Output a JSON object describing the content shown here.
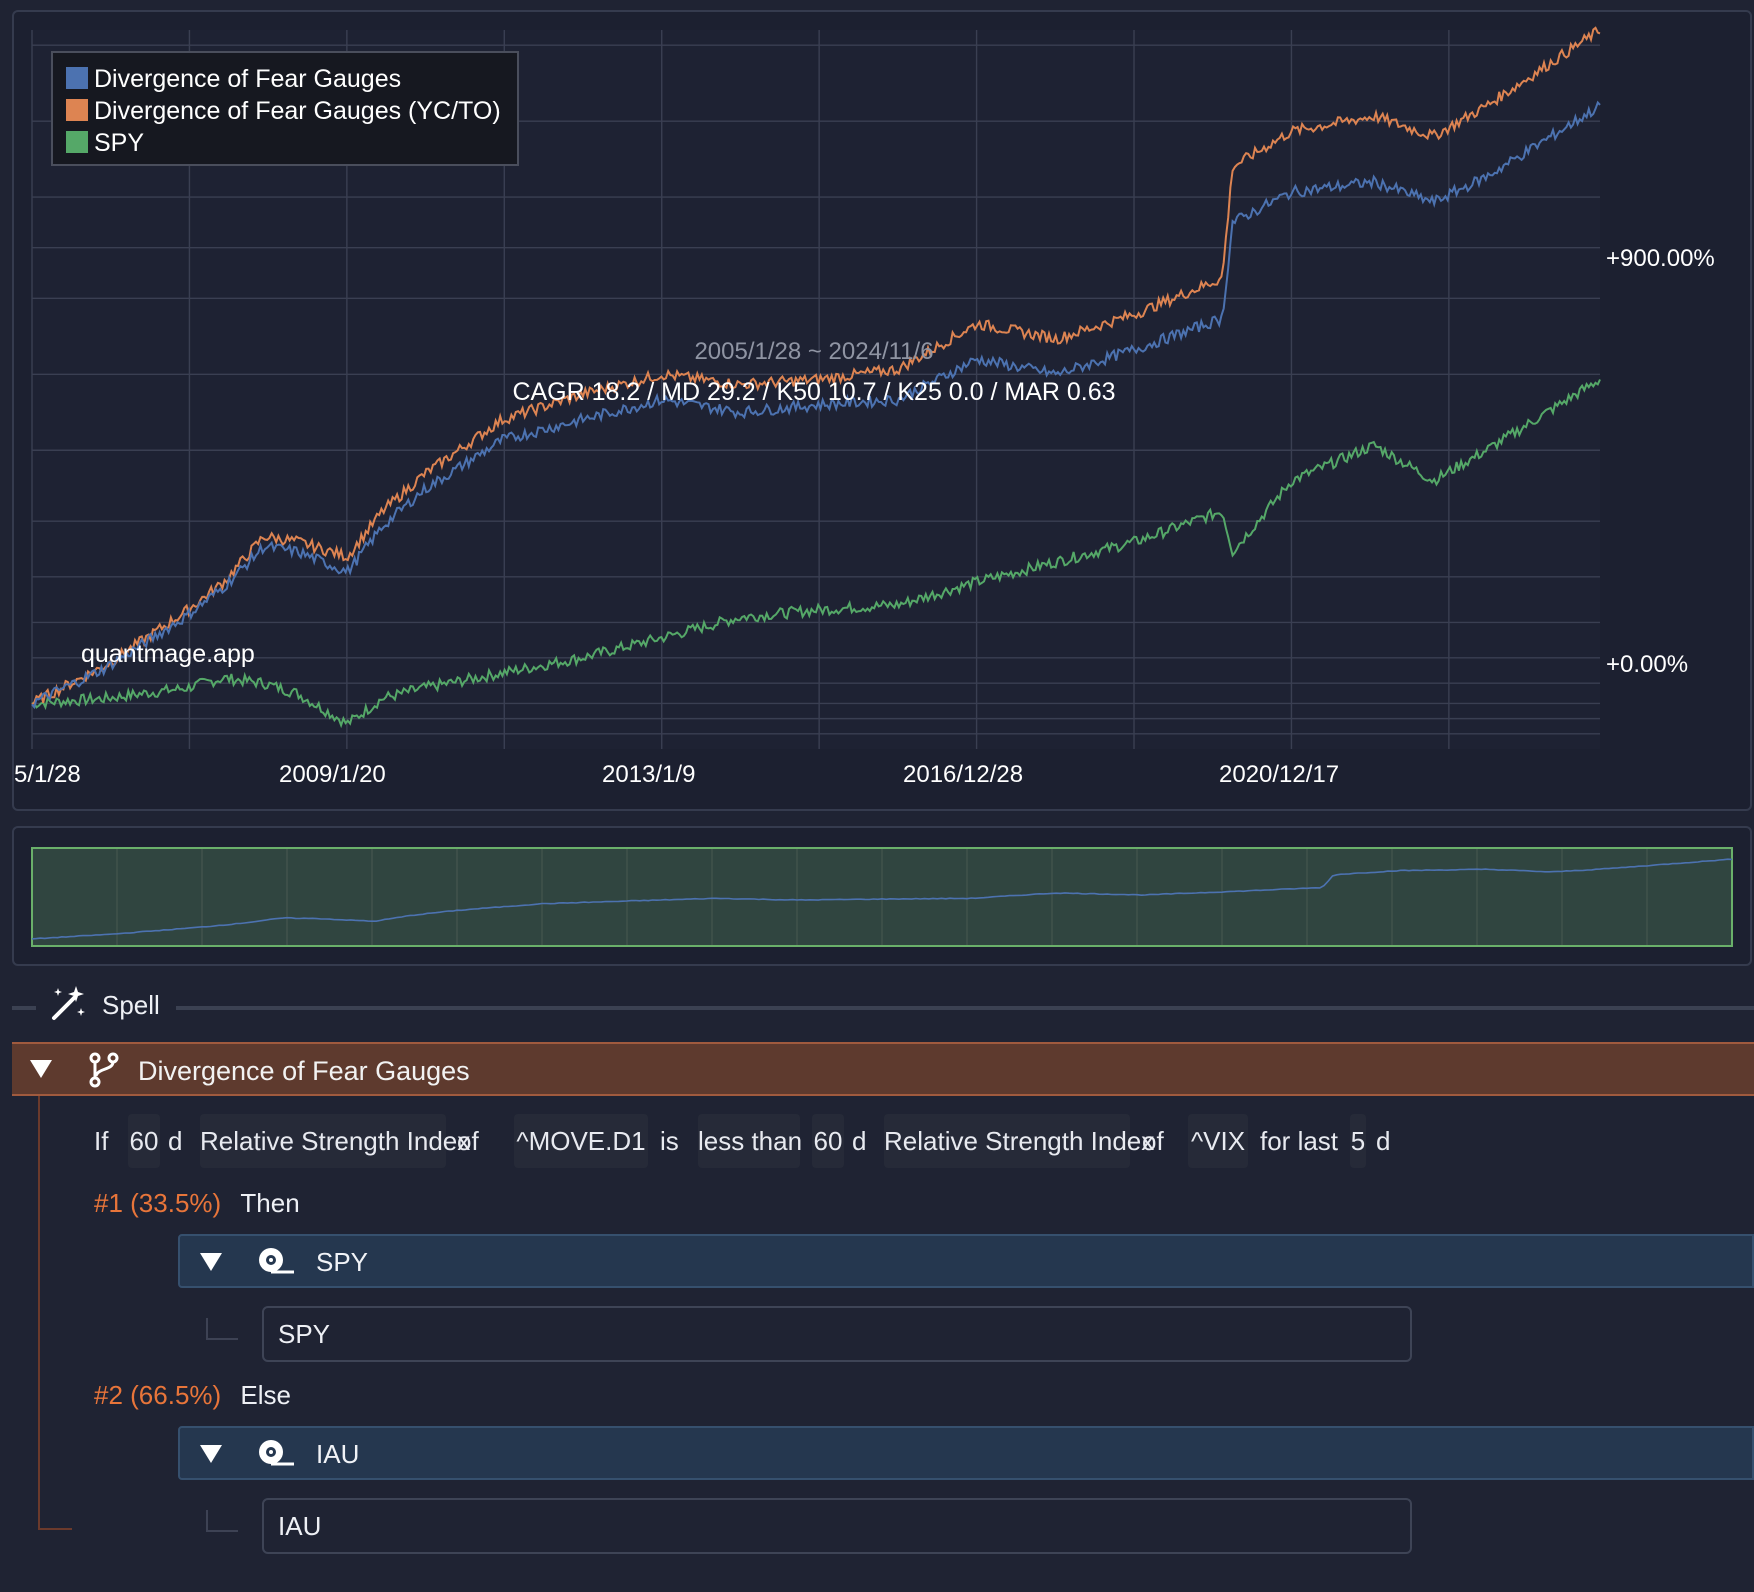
{
  "chart": {
    "legend": [
      "Divergence of Fear Gauges",
      "Divergence of Fear Gauges (YC/TO)",
      "SPY"
    ],
    "series_colors": [
      "#4c72b0",
      "#dd8452",
      "#55a868"
    ],
    "date_range": "2005/1/28 ~ 2024/11/6",
    "stats": "CAGR 18.2 / MD 29.2 / K50 10.7 / K25 0.0 / MAR 0.63",
    "watermark": "quantmage.app",
    "y_ticks": [
      "+900.00%",
      "+0.00%"
    ],
    "x_ticks": [
      "5/1/28",
      "2009/1/20",
      "2013/1/9",
      "2016/12/28",
      "2020/12/17"
    ]
  },
  "chart_data": {
    "type": "line",
    "x": [
      "2005/1/28",
      "2006/1/1",
      "2007/1/1",
      "2007/7/1",
      "2008/1/1",
      "2008/6/1",
      "2009/1/20",
      "2009/7/1",
      "2010/1/1",
      "2011/1/1",
      "2012/1/1",
      "2013/1/9",
      "2014/1/1",
      "2015/1/1",
      "2016/1/1",
      "2016/12/28",
      "2018/1/1",
      "2019/1/1",
      "2020/2/1",
      "2020/3/20",
      "2020/12/17",
      "2022/1/1",
      "2022/10/1",
      "2023/6/1",
      "2024/11/6"
    ],
    "series": [
      {
        "name": "Divergence of Fear Gauges",
        "values": [
          0,
          70,
          170,
          230,
          310,
          300,
          260,
          350,
          420,
          520,
          560,
          600,
          575,
          590,
          600,
          680,
          650,
          700,
          760,
          950,
          1010,
          1030,
          990,
          1040,
          1180
        ]
      },
      {
        "name": "Divergence of Fear Gauges (YC/TO)",
        "values": [
          0,
          75,
          180,
          240,
          330,
          320,
          290,
          380,
          450,
          560,
          610,
          650,
          630,
          640,
          660,
          750,
          720,
          770,
          840,
          1060,
          1130,
          1160,
          1120,
          1180,
          1330
        ]
      },
      {
        "name": "SPY",
        "values": [
          0,
          10,
          30,
          50,
          40,
          20,
          -40,
          10,
          30,
          60,
          90,
          130,
          170,
          185,
          195,
          240,
          280,
          320,
          380,
          300,
          440,
          510,
          440,
          500,
          640
        ]
      }
    ],
    "yticks": [
      "+900.00%",
      "+0.00%"
    ],
    "xticks": [
      "5/1/28",
      "2009/1/20",
      "2013/1/9",
      "2016/12/28",
      "2020/12/17"
    ],
    "ylim": [
      -90,
      1330
    ],
    "legend_position": "top-left",
    "grid": true
  },
  "spell": {
    "title": "Spell"
  },
  "branch": {
    "title": "Divergence of Fear Gauges",
    "condition": {
      "if": "If",
      "lhs_window": "60",
      "lhs_unit": "d",
      "lhs_indicator": "Relative Strength Index",
      "of1": "of",
      "lhs_ticker": "^MOVE.D1",
      "is": "is",
      "comparator": "less than",
      "rhs_window": "60",
      "rhs_unit": "d",
      "rhs_indicator": "Relative Strength Index",
      "of2": "of",
      "rhs_ticker": "^VIX",
      "for_last": "for last",
      "days": "5",
      "days_unit": "d"
    },
    "cases": [
      {
        "num": "#1 (33.5%)",
        "word": "Then",
        "asset_title": "SPY",
        "ticker": "SPY"
      },
      {
        "num": "#2 (66.5%)",
        "word": "Else",
        "asset_title": "IAU",
        "ticker": "IAU"
      }
    ]
  }
}
